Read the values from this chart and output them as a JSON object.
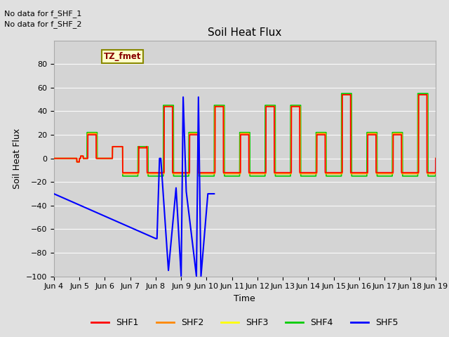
{
  "title": "Soil Heat Flux",
  "ylabel": "Soil Heat Flux",
  "xlabel": "Time",
  "annotations": [
    "No data for f_SHF_1",
    "No data for f_SHF_2"
  ],
  "legend_label": "TZ_fmet",
  "ylim": [
    -100,
    100
  ],
  "xlim_days": [
    4,
    19
  ],
  "yticks": [
    -100,
    -80,
    -60,
    -40,
    -20,
    0,
    20,
    40,
    60,
    80
  ],
  "xtick_labels": [
    "Jun 4",
    "Jun 5",
    "Jun 6",
    "Jun 7",
    "Jun 8",
    "Jun 9",
    "Jun 10",
    "Jun 11",
    "Jun 12",
    "Jun 13",
    "Jun 14",
    "Jun 15",
    "Jun 16",
    "Jun 17",
    "Jun 18",
    "Jun 19"
  ],
  "xtick_days": [
    4,
    5,
    6,
    7,
    8,
    9,
    10,
    11,
    12,
    13,
    14,
    15,
    16,
    17,
    18,
    19
  ],
  "colors": {
    "SHF1": "#ff0000",
    "SHF2": "#ff8800",
    "SHF3": "#ffff00",
    "SHF4": "#00cc00",
    "SHF5": "#0000ff"
  },
  "bg_color": "#e0e0e0",
  "plot_bg_color": "#d4d4d4",
  "legend_box_facecolor": "#ffffcc",
  "legend_box_edgecolor": "#888800"
}
